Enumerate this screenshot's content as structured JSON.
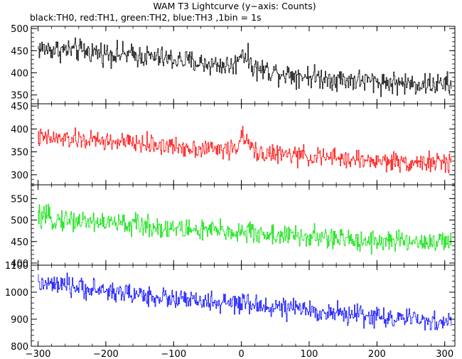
{
  "title": "WAM T3 Lightcurve (y−axis: Counts)",
  "subtitle": "black:TH0, red:TH1, green:TH2, blue:TH3 ,1bin = 1s",
  "colors": {
    "TH0": "#000000",
    "TH1": "#ff0000",
    "TH2": "#00e000",
    "TH3": "#0000ff"
  },
  "chart_data": [
    {
      "type": "line",
      "series": [
        {
          "name": "TH0",
          "color": "#000000"
        }
      ],
      "xlim": [
        -310,
        315
      ],
      "ylim": [
        330,
        505
      ],
      "yticks": [
        350,
        400,
        450,
        500
      ],
      "keypoints": [
        [
          -300,
          455
        ],
        [
          -270,
          452
        ],
        [
          -240,
          450
        ],
        [
          -200,
          445
        ],
        [
          -150,
          438
        ],
        [
          -100,
          430
        ],
        [
          -50,
          420
        ],
        [
          -10,
          415
        ],
        [
          0,
          450
        ],
        [
          20,
          410
        ],
        [
          50,
          402
        ],
        [
          100,
          392
        ],
        [
          150,
          385
        ],
        [
          200,
          380
        ],
        [
          250,
          375
        ],
        [
          310,
          373
        ]
      ],
      "noise": 22
    },
    {
      "type": "line",
      "series": [
        {
          "name": "TH1",
          "color": "#ff0000"
        }
      ],
      "xlim": [
        -310,
        315
      ],
      "ylim": [
        278,
        455
      ],
      "yticks": [
        300,
        350,
        400,
        450
      ],
      "keypoints": [
        [
          -300,
          380
        ],
        [
          -250,
          377
        ],
        [
          -200,
          373
        ],
        [
          -150,
          368
        ],
        [
          -100,
          362
        ],
        [
          -50,
          357
        ],
        [
          -10,
          355
        ],
        [
          0,
          385
        ],
        [
          20,
          350
        ],
        [
          50,
          345
        ],
        [
          100,
          340
        ],
        [
          150,
          335
        ],
        [
          200,
          330
        ],
        [
          250,
          328
        ],
        [
          310,
          325
        ]
      ],
      "noise": 18
    },
    {
      "type": "line",
      "series": [
        {
          "name": "TH2",
          "color": "#00e000"
        }
      ],
      "xlim": [
        -310,
        315
      ],
      "ylim": [
        395,
        582
      ],
      "yticks": [
        400,
        450,
        500,
        550
      ],
      "keypoints": [
        [
          -300,
          505
        ],
        [
          -250,
          500
        ],
        [
          -200,
          494
        ],
        [
          -150,
          488
        ],
        [
          -100,
          480
        ],
        [
          -50,
          475
        ],
        [
          0,
          472
        ],
        [
          50,
          465
        ],
        [
          100,
          460
        ],
        [
          150,
          455
        ],
        [
          200,
          452
        ],
        [
          250,
          450
        ],
        [
          310,
          448
        ]
      ],
      "noise": 22
    },
    {
      "type": "line",
      "series": [
        {
          "name": "TH3",
          "color": "#0000ff"
        }
      ],
      "xlim": [
        -310,
        315
      ],
      "ylim": [
        800,
        1100
      ],
      "yticks": [
        800,
        900,
        1000,
        1100
      ],
      "keypoints": [
        [
          -300,
          1030
        ],
        [
          -250,
          1020
        ],
        [
          -200,
          1005
        ],
        [
          -150,
          990
        ],
        [
          -100,
          975
        ],
        [
          -50,
          962
        ],
        [
          0,
          955
        ],
        [
          50,
          945
        ],
        [
          100,
          932
        ],
        [
          150,
          920
        ],
        [
          200,
          910
        ],
        [
          250,
          898
        ],
        [
          310,
          885
        ]
      ],
      "noise": 32
    }
  ],
  "xaxis": {
    "ticks": [
      -300,
      -200,
      -100,
      0,
      100,
      200,
      300
    ],
    "ticklabels": [
      "−300",
      "−200",
      "−100",
      "0",
      "100",
      "200",
      "300"
    ]
  }
}
